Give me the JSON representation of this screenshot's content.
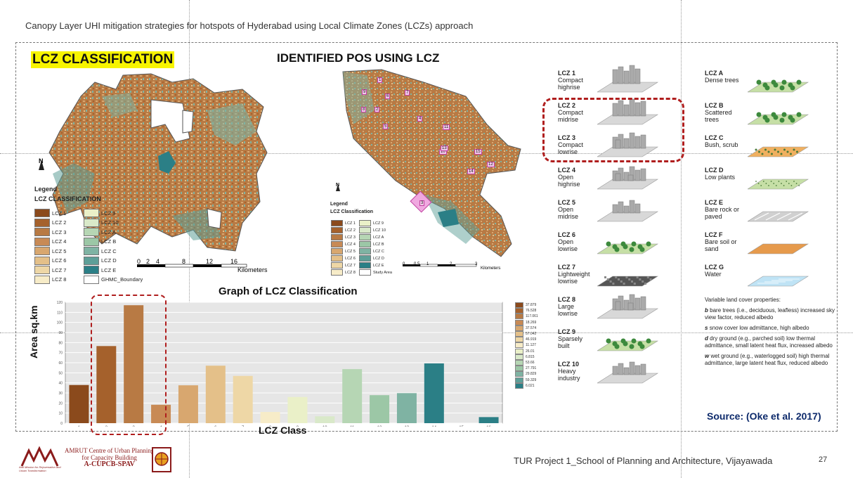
{
  "header": {
    "title": "Canopy Layer UHI mitigation strategies for hotspots of Hyderabad using Local Climate Zones (LCZs) approach"
  },
  "left_map": {
    "title": "LCZ CLASSIFICATION",
    "north": "N",
    "legend_title": "Legend",
    "legend_subtitle": "LCZ CLASSIFICATION",
    "legend_items": [
      {
        "label": "LCZ 1",
        "color": "#8b4a1c"
      },
      {
        "label": "LCZ 9",
        "color": "#eaf0c8"
      },
      {
        "label": "LCZ 2",
        "color": "#a5612c"
      },
      {
        "label": "LCZ 10",
        "color": "#d9e9c9"
      },
      {
        "label": "LCZ 3",
        "color": "#b87a44"
      },
      {
        "label": "LCZ A",
        "color": "#b6d6b4"
      },
      {
        "label": "LCZ 4",
        "color": "#c88a55"
      },
      {
        "label": "LCZ B",
        "color": "#9cc7a6"
      },
      {
        "label": "LCZ 5",
        "color": "#d8a76f"
      },
      {
        "label": "LCZ C",
        "color": "#7fb3a3"
      },
      {
        "label": "LCZ 6",
        "color": "#e4c089"
      },
      {
        "label": "LCZ D",
        "color": "#5e9f98"
      },
      {
        "label": "LCZ 7",
        "color": "#eed7a6"
      },
      {
        "label": "LCZ E",
        "color": "#2b7f86"
      },
      {
        "label": "LCZ 8",
        "color": "#f7ecc8"
      },
      {
        "label": "GHMC_Boundary",
        "color": "#ffffff"
      }
    ],
    "scale_ticks": [
      "0",
      "2",
      "4",
      "8",
      "12",
      "16"
    ],
    "scale_unit": "Kilometers"
  },
  "right_map": {
    "title": "IDENTIFIED POS USING LCZ",
    "north": "N",
    "legend_title": "Legend",
    "legend_subtitle": "LCZ Classification",
    "legend_items": [
      {
        "label": "LCZ 1",
        "color": "#8b4a1c"
      },
      {
        "label": "LCZ 9",
        "color": "#eaf0c8"
      },
      {
        "label": "LCZ 2",
        "color": "#a5612c"
      },
      {
        "label": "LCZ 10",
        "color": "#d9e9c9"
      },
      {
        "label": "LCZ 3",
        "color": "#b87a44"
      },
      {
        "label": "LCZ A",
        "color": "#b6d6b4"
      },
      {
        "label": "LCZ 4",
        "color": "#c88a55"
      },
      {
        "label": "LCZ B",
        "color": "#9cc7a6"
      },
      {
        "label": "LCZ 5",
        "color": "#d8a76f"
      },
      {
        "label": "LCZ C",
        "color": "#7fb3a3"
      },
      {
        "label": "LCZ 6",
        "color": "#e4c089"
      },
      {
        "label": "LCZ D",
        "color": "#5e9f98"
      },
      {
        "label": "LCZ 7",
        "color": "#eed7a6"
      },
      {
        "label": "LCZ E",
        "color": "#2b7f86"
      },
      {
        "label": "LCZ 8",
        "color": "#f7ecc8"
      },
      {
        "label": "Study Area",
        "color": "#ffffff"
      }
    ],
    "scale_ticks": [
      "0",
      "0.5",
      "1",
      "2",
      "3"
    ],
    "scale_unit": "Kilometers",
    "pos_labels": [
      "1",
      "2",
      "3",
      "4",
      "5",
      "6",
      "7",
      "8",
      "9",
      "10",
      "11",
      "12",
      "13",
      "14",
      "15"
    ]
  },
  "chart_data": {
    "type": "bar",
    "title": "Graph of LCZ Classification",
    "xlabel": "LCZ Class",
    "ylabel": "Area sq.km",
    "ylim": [
      0,
      120
    ],
    "grid": true,
    "categories": [
      "1",
      "2",
      "3",
      "4",
      "5",
      "6",
      "7",
      "8",
      "9",
      "10",
      "11",
      "12",
      "13",
      "14",
      "15",
      "16"
    ],
    "values": [
      37.879,
      76.528,
      117.061,
      18.269,
      37.574,
      57.042,
      46.919,
      11.127,
      26.01,
      6.815,
      53.66,
      27.791,
      29.829,
      59.329,
      0,
      6.021
    ],
    "colors": [
      "#8b4a1c",
      "#a5612c",
      "#b87a44",
      "#c88a55",
      "#d8a76f",
      "#e4c089",
      "#eed7a6",
      "#f7ecc8",
      "#eaf0c8",
      "#d9e9c9",
      "#b6d6b4",
      "#9cc7a6",
      "#7fb3a3",
      "#2b7f86",
      "#ffffff",
      "#2b7f86"
    ],
    "legend_values": [
      "37.879",
      "76.528",
      "117.061",
      "18.269",
      "37.574",
      "57.042",
      "46.919",
      "11.127",
      "26.01",
      "6.815",
      "53.66",
      "27.791",
      "29.829",
      "59.329",
      "6.021"
    ]
  },
  "lcz_table": {
    "left_col": [
      {
        "name": "LCZ 1",
        "desc": "Compact highrise"
      },
      {
        "name": "LCZ 2",
        "desc": "Compact midrise"
      },
      {
        "name": "LCZ 3",
        "desc": "Compact lowrise"
      },
      {
        "name": "LCZ 4",
        "desc": "Open highrise"
      },
      {
        "name": "LCZ 5",
        "desc": "Open midrise"
      },
      {
        "name": "LCZ 6",
        "desc": "Open lowrise"
      },
      {
        "name": "LCZ 7",
        "desc": "Lightweight lowrise"
      },
      {
        "name": "LCZ 8",
        "desc": "Large lowrise"
      },
      {
        "name": "LCZ 9",
        "desc": "Sparsely built"
      },
      {
        "name": "LCZ 10",
        "desc": "Heavy industry"
      }
    ],
    "right_col": [
      {
        "name": "LCZ A",
        "desc": "Dense trees"
      },
      {
        "name": "LCZ B",
        "desc": "Scattered trees"
      },
      {
        "name": "LCZ C",
        "desc": "Bush, scrub"
      },
      {
        "name": "LCZ D",
        "desc": "Low plants"
      },
      {
        "name": "LCZ E",
        "desc": "Bare rock or paved"
      },
      {
        "name": "LCZ F",
        "desc": "Bare soil or sand"
      },
      {
        "name": "LCZ G",
        "desc": "Water"
      }
    ],
    "variable_title": "Variable land cover properties:",
    "variable_items": [
      {
        "key": "b",
        "text": "bare trees (i.e., deciduous, leafless) increased sky view factor, reduced albedo"
      },
      {
        "key": "s",
        "text": "snow cover low admittance, high albedo"
      },
      {
        "key": "d",
        "text": "dry ground (e.g., parched soil) low thermal admittance, small latent heat flux, increased albedo"
      },
      {
        "key": "w",
        "text": "wet ground (e.g., waterlogged soil) high thermal admittance, large latent heat flux, reduced albedo"
      }
    ]
  },
  "source": "Source: (Oke et al. 2017)",
  "footer": {
    "org_line1": "AMRUT Centre of Urban Planning",
    "org_line2": "for Capacity Building",
    "org_line3": "A-CUPCB-SPAV",
    "logo_text": "Atal Mission for Rejuvenation and Urban Transformation",
    "project": "TUR Project 1_School of Planning and Architecture, Vijayawada",
    "page": "27"
  }
}
